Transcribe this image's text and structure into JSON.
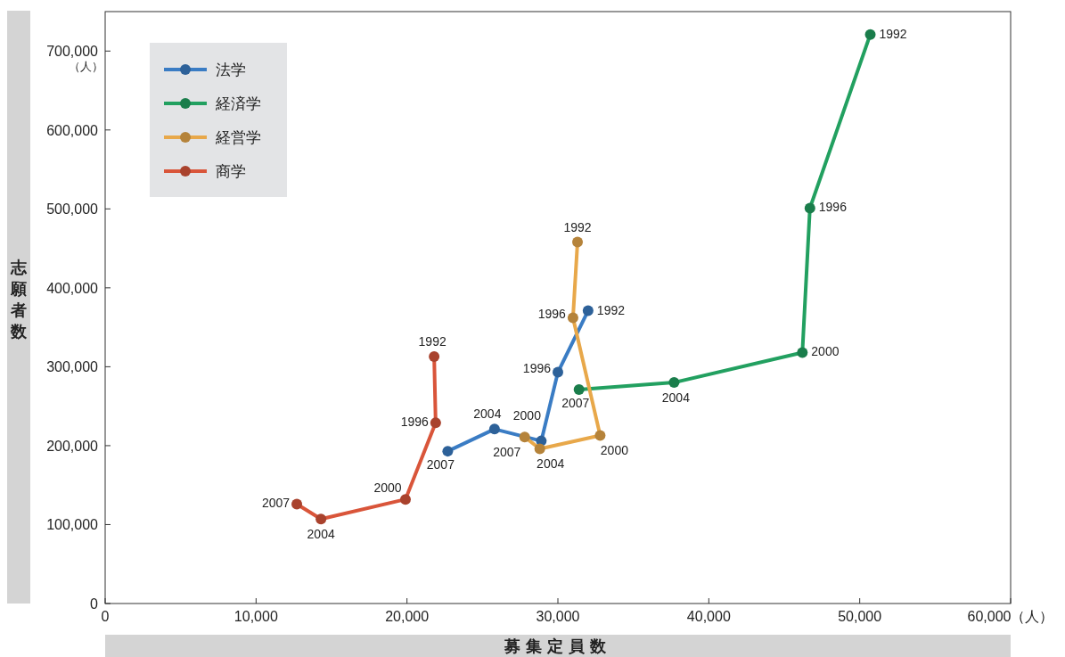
{
  "chart_data": {
    "type": "line",
    "xlabel": "募集定員数",
    "ylabel": "志願者数",
    "xlim": [
      0,
      60000
    ],
    "xticks": [
      0,
      {
        "value": 10000,
        "label": "10,000"
      },
      {
        "value": 20000,
        "label": "20,000"
      },
      {
        "value": 30000,
        "label": "30,000"
      },
      {
        "value": 40000,
        "label": "40,000"
      },
      {
        "value": 50000,
        "label": "50,000"
      },
      {
        "value": 60000,
        "label": "60,000（人）"
      }
    ],
    "ylim": [
      0,
      750000
    ],
    "yticks": [
      0,
      {
        "value": 100000,
        "label": "100,000"
      },
      {
        "value": 200000,
        "label": "200,000"
      },
      {
        "value": 300000,
        "label": "300,000"
      },
      {
        "value": 400000,
        "label": "400,000"
      },
      {
        "value": 500000,
        "label": "500,000"
      },
      {
        "value": 600000,
        "label": "600,000"
      },
      {
        "value": 700000,
        "label": "700,000"
      }
    ],
    "grid": false,
    "legend": "top left",
    "marker": "circle",
    "line_style": "solid",
    "series": [
      {
        "name": "法学",
        "color": "#3a7cc4",
        "x": [
          32000,
          30000,
          28900,
          25800,
          22700
        ],
        "values": [
          371000,
          293000,
          206000,
          221000,
          193000
        ]
      },
      {
        "name": "経済学",
        "color": "#22a060",
        "x": [
          50700,
          46700,
          46200,
          37700,
          31400
        ],
        "values": [
          721000,
          501000,
          318000,
          280000,
          271000
        ]
      },
      {
        "name": "経営学",
        "color": "#e8a84a",
        "x": [
          31300,
          31000,
          32800,
          28800,
          27800
        ],
        "values": [
          458000,
          362000,
          213000,
          196000,
          211000
        ]
      },
      {
        "name": "商学",
        "color": "#d9553a",
        "x": [
          21800,
          21900,
          19900,
          14300,
          12700
        ],
        "values": [
          313000,
          229000,
          132000,
          107000,
          126000
        ]
      }
    ],
    "annotations": [
      "（人）",
      {
        "text": "1992",
        "x": 32000,
        "y": 371000
      },
      {
        "text": "1996",
        "x": 30000,
        "y": 293000
      },
      {
        "text": "2000",
        "x": 28900,
        "y": 206000
      },
      {
        "text": "2004",
        "x": 25800,
        "y": 221000
      },
      {
        "text": "2007",
        "x": 22700,
        "y": 193000
      },
      {
        "text": "1992",
        "x": 50700,
        "y": 721000
      },
      {
        "text": "1996",
        "x": 46700,
        "y": 501000
      },
      {
        "text": "2000",
        "x": 46200,
        "y": 318000
      },
      {
        "text": "2004",
        "x": 37700,
        "y": 280000
      },
      {
        "text": "2007",
        "x": 31400,
        "y": 271000
      },
      {
        "text": "1992",
        "x": 31300,
        "y": 458000
      },
      {
        "text": "1996",
        "x": 31000,
        "y": 362000
      },
      {
        "text": "2000",
        "x": 32800,
        "y": 213000
      },
      {
        "text": "2004",
        "x": 28800,
        "y": 196000
      },
      {
        "text": "2007",
        "x": 27800,
        "y": 211000
      },
      {
        "text": "1992",
        "x": 21800,
        "y": 313000
      },
      {
        "text": "1996",
        "x": 21900,
        "y": 229000
      },
      {
        "text": "2000",
        "x": 19900,
        "y": 132000
      },
      {
        "text": "2004",
        "x": 14300,
        "y": 107000
      },
      {
        "text": "2007",
        "x": 12700,
        "y": 126000
      }
    ]
  }
}
